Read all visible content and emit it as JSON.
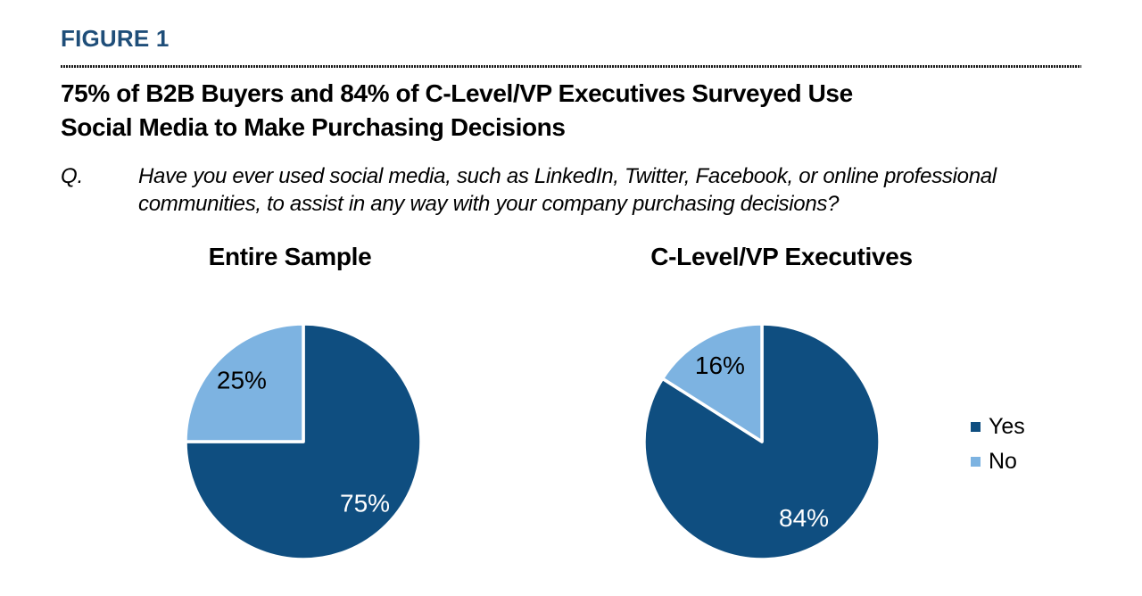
{
  "page": {
    "background": "#FFFFFF"
  },
  "header": {
    "figure_label": "FIGURE 1",
    "figure_label_color": "#1F4E79",
    "title_line1": "75% of B2B Buyers and 84% of C-Level/VP Executives Surveyed Use",
    "title_line2": "Social Media to Make Purchasing Decisions",
    "question_prefix": "Q.",
    "question_line1": "Have you ever used social media, such as LinkedIn, Twitter, Facebook, or online professional",
    "question_line2": "communities, to assist in any way with your company purchasing decisions?"
  },
  "legend": {
    "position": "right",
    "items": [
      {
        "label": "Yes",
        "color": "#0F4E80"
      },
      {
        "label": "No",
        "color": "#7DB3E1"
      }
    ]
  },
  "chart_data": [
    {
      "type": "pie",
      "title": "Entire Sample",
      "start_angle_deg": 0,
      "direction": "clockwise",
      "slices": [
        {
          "name": "Yes",
          "value": 75,
          "label": "75%",
          "color": "#0F4E80",
          "label_color": "#FFFFFF"
        },
        {
          "name": "No",
          "value": 25,
          "label": "25%",
          "color": "#7DB3E1",
          "label_color": "#000000"
        }
      ]
    },
    {
      "type": "pie",
      "title": "C-Level/VP Executives",
      "start_angle_deg": 0,
      "direction": "clockwise",
      "slices": [
        {
          "name": "Yes",
          "value": 84,
          "label": "84%",
          "color": "#0F4E80",
          "label_color": "#FFFFFF"
        },
        {
          "name": "No",
          "value": 16,
          "label": "16%",
          "color": "#7DB3E1",
          "label_color": "#000000"
        }
      ]
    }
  ]
}
